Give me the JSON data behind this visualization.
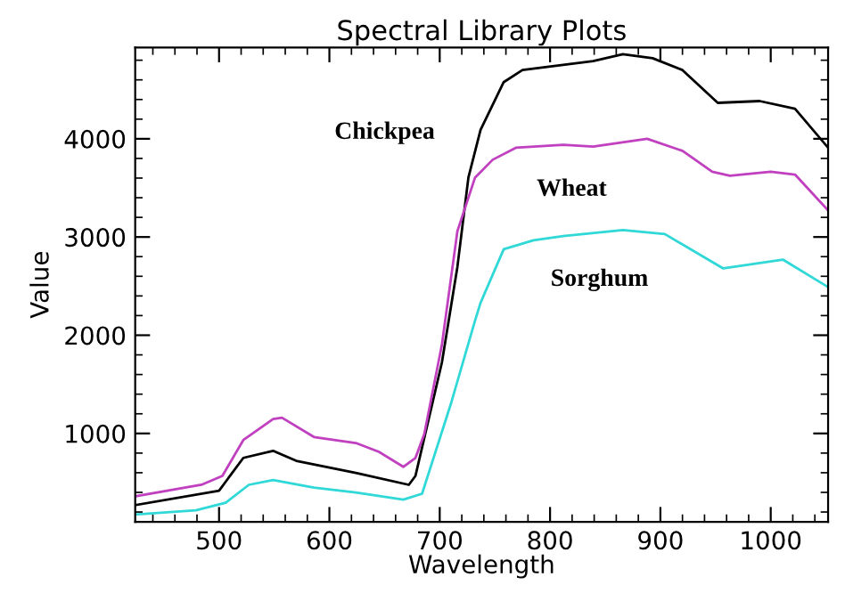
{
  "chart_data": {
    "type": "line",
    "title": "Spectral Library Plots",
    "xlabel": "Wavelength",
    "ylabel": "Value",
    "xlim": [
      424,
      1052
    ],
    "ylim": [
      100,
      4930
    ],
    "xticks": [
      500,
      600,
      700,
      800,
      900,
      1000
    ],
    "yticks": [
      1000,
      2000,
      3000,
      4000
    ],
    "grid": false,
    "legend": false,
    "marker": "none",
    "line_style": "solid",
    "series": [
      {
        "name": "Chickpea",
        "color": "#000000",
        "x": [
          424,
          500,
          522,
          549,
          570,
          624,
          672,
          678,
          702,
          716,
          726,
          737,
          758,
          775,
          839,
          866,
          893,
          920,
          952,
          990,
          1022,
          1052
        ],
        "values": [
          270,
          417,
          751,
          823,
          721,
          599,
          477,
          568,
          1723,
          2694,
          3605,
          4091,
          4577,
          4700,
          4790,
          4862,
          4820,
          4700,
          4366,
          4384,
          4306,
          3909
        ]
      },
      {
        "name": "Wheat",
        "color": "#c040c0",
        "x": [
          424,
          484,
          503,
          522,
          549,
          557,
          586,
          624,
          645,
          667,
          678,
          686,
          702,
          716,
          732,
          748,
          769,
          812,
          839,
          888,
          920,
          947,
          963,
          1000,
          1022,
          1052
        ],
        "values": [
          360,
          477,
          568,
          933,
          1146,
          1160,
          964,
          903,
          812,
          660,
          751,
          994,
          1905,
          3058,
          3605,
          3787,
          3909,
          3938,
          3920,
          4000,
          3877,
          3665,
          3623,
          3665,
          3636,
          3271
        ]
      },
      {
        "name": "Sorghum",
        "color": "#30d8d8",
        "x": [
          424,
          479,
          506,
          527,
          549,
          586,
          624,
          667,
          684,
          710,
          732,
          737,
          758,
          785,
          812,
          866,
          904,
          957,
          1011,
          1052
        ],
        "values": [
          175,
          217,
          295,
          477,
          526,
          448,
          399,
          326,
          386,
          1297,
          2148,
          2330,
          2876,
          2967,
          3009,
          3070,
          3030,
          2680,
          2770,
          2490
        ]
      }
    ]
  }
}
